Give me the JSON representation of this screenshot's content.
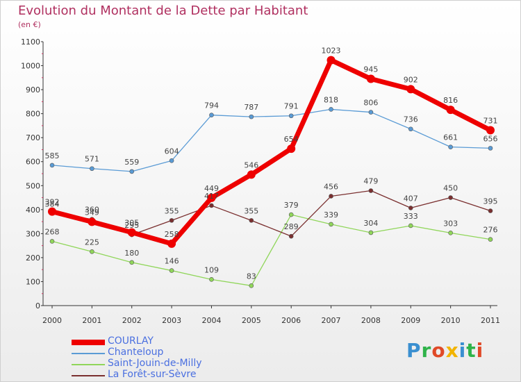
{
  "chart_data": {
    "type": "line",
    "title": "Evolution du Montant de la Dette par Habitant",
    "subtitle": "(en €)",
    "x": [
      "2000",
      "2001",
      "2002",
      "2003",
      "2004",
      "2005",
      "2006",
      "2007",
      "2008",
      "2009",
      "2010",
      "2011"
    ],
    "ylim": [
      0,
      1100
    ],
    "yticks": [
      0,
      100,
      200,
      300,
      400,
      500,
      600,
      700,
      800,
      900,
      1000,
      1100
    ],
    "grid": false,
    "legend_position": "bottom-left",
    "series": [
      {
        "name": "COURLAY",
        "color": "#ee0000",
        "values": [
          392,
          349,
          305,
          258,
          449,
          546,
          654,
          1023,
          945,
          902,
          816,
          731
        ]
      },
      {
        "name": "Chanteloup",
        "color": "#5a9bd5",
        "values": [
          585,
          571,
          559,
          604,
          794,
          787,
          791,
          818,
          806,
          736,
          661,
          656
        ]
      },
      {
        "name": "Saint-Jouin-de-Milly",
        "color": "#90d65a",
        "values": [
          268,
          225,
          180,
          146,
          109,
          83,
          379,
          339,
          304,
          333,
          303,
          276
        ]
      },
      {
        "name": "La Forêt-sur-Sèvre",
        "color": "#7a2f2f",
        "values": [
          384,
          360,
          295,
          355,
          417,
          355,
          289,
          456,
          479,
          407,
          450,
          395
        ]
      }
    ]
  },
  "logo": {
    "text": "Proxiti"
  }
}
